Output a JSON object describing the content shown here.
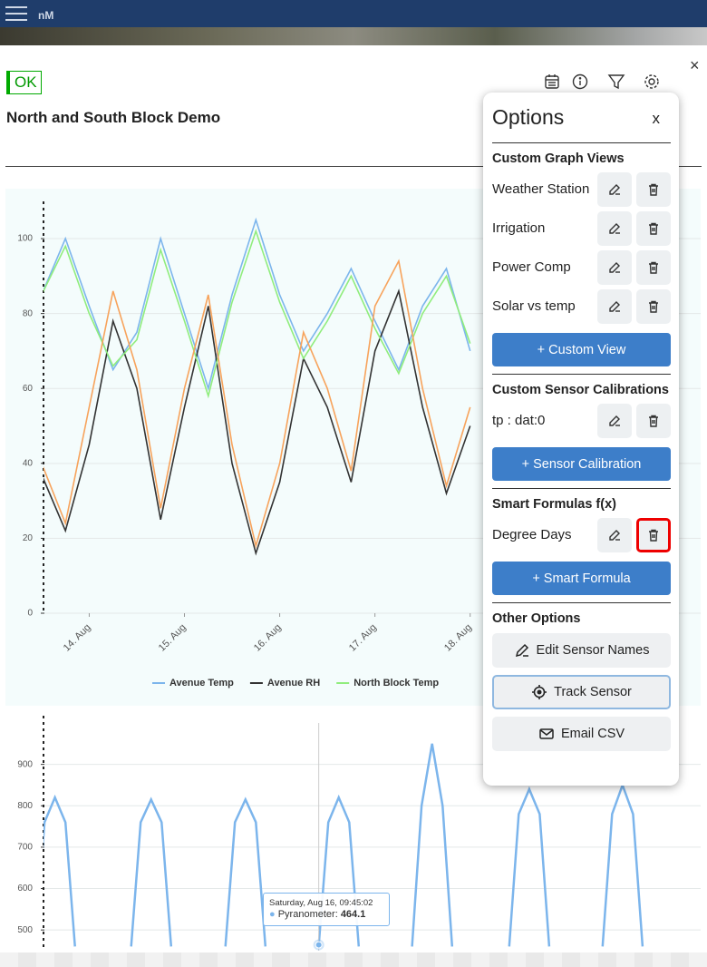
{
  "header": {
    "app_name": "nM"
  },
  "status": "OK",
  "title": "North and South Block Demo",
  "chart_data": [
    {
      "type": "line",
      "x": [
        13.5,
        13.75,
        14.0,
        14.25,
        14.5,
        14.75,
        15.0,
        15.25,
        15.5,
        15.75,
        16.0,
        16.25,
        16.5,
        16.75,
        17.0,
        17.25,
        17.5,
        17.75,
        18.0
      ],
      "xlim": [
        13.52,
        20.42
      ],
      "xticks": [
        {
          "value": 14,
          "label": "14. Aug"
        },
        {
          "value": 15,
          "label": "15. Aug"
        },
        {
          "value": 16,
          "label": "16. Aug"
        },
        {
          "value": 17,
          "label": "17. Aug"
        },
        {
          "value": 18,
          "label": "18. Aug"
        }
      ],
      "ylim": [
        0,
        108
      ],
      "yticks": [
        0,
        20,
        40,
        60,
        80,
        100
      ],
      "grid": true,
      "series": [
        {
          "name": "Avenue Temp",
          "color": "#7cb5ec",
          "values": [
            85,
            100,
            82,
            65,
            75,
            100,
            80,
            60,
            85,
            105,
            85,
            70,
            80,
            92,
            78,
            65,
            82,
            92,
            70
          ]
        },
        {
          "name": "Avenue RH",
          "color": "#333333",
          "values": [
            37,
            22,
            45,
            78,
            60,
            25,
            55,
            82,
            40,
            16,
            35,
            68,
            55,
            35,
            70,
            86,
            55,
            32,
            50
          ]
        },
        {
          "name": "North Block Temp",
          "color": "#90ed7d",
          "values": [
            85,
            98,
            80,
            66,
            73,
            97,
            78,
            58,
            83,
            102,
            83,
            68,
            78,
            90,
            76,
            64,
            80,
            90,
            72
          ]
        },
        {
          "color": "#f7a35c",
          "values": [
            40,
            24,
            55,
            86,
            65,
            28,
            60,
            85,
            45,
            18,
            40,
            75,
            60,
            38,
            82,
            94,
            60,
            34,
            55
          ]
        }
      ]
    },
    {
      "type": "line",
      "x": [
        13.43,
        13.53,
        13.64,
        13.75,
        13.85,
        14.1,
        14.44,
        14.54,
        14.65,
        14.76,
        14.86,
        15.1,
        15.43,
        15.53,
        15.64,
        15.75,
        15.85,
        16.1,
        16.41,
        16.51,
        16.62,
        16.73,
        16.83,
        17.1,
        17.39,
        17.49,
        17.6,
        17.71,
        17.81,
        18.1,
        18.41,
        18.51,
        18.62,
        18.73,
        18.83,
        19.1,
        19.39,
        19.49,
        19.6,
        19.71,
        19.81
      ],
      "xlim": [
        13.52,
        20.42
      ],
      "ylim": [
        450,
        1000
      ],
      "yticks": [
        500,
        600,
        700,
        800,
        900
      ],
      "grid": true,
      "series": [
        {
          "color": "#7cb5ec",
          "values": [
            460,
            760,
            820,
            760,
            460,
            null,
            460,
            760,
            815,
            760,
            460,
            null,
            460,
            760,
            815,
            760,
            460,
            null,
            464.1,
            760,
            820,
            760,
            460,
            null,
            460,
            800,
            950,
            800,
            460,
            null,
            460,
            780,
            840,
            780,
            460,
            null,
            460,
            780,
            850,
            780,
            460
          ]
        }
      ],
      "tooltip": {
        "date": "Saturday, Aug 16, 09:45:02",
        "label": "Pyranometer:",
        "value": 464.1,
        "index": 18
      }
    }
  ],
  "options": {
    "title": "Options",
    "close": "x",
    "sections": [
      {
        "heading": "Custom Graph Views",
        "items": [
          "Weather Station",
          "Irrigation",
          "Power Comp",
          "Solar vs temp"
        ],
        "add_button": "+ Custom View"
      },
      {
        "heading": "Custom Sensor Calibrations",
        "items": [
          "tp : dat:0"
        ],
        "add_button": "+ Sensor Calibration"
      },
      {
        "heading": "Smart Formulas f(x)",
        "items": [
          "Degree Days"
        ],
        "add_button": "+ Smart Formula"
      },
      {
        "heading": "Other Options",
        "buttons": [
          "Edit Sensor Names",
          "Track Sensor",
          "Email CSV"
        ]
      }
    ]
  }
}
